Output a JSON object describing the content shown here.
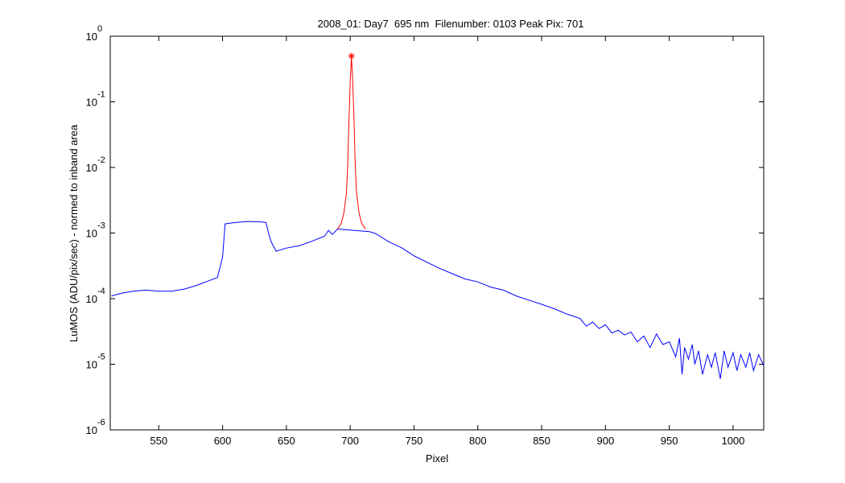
{
  "chart_data": {
    "type": "line",
    "title": "2008_01: Day7  695 nm  Filenumber: 0103 Peak Pix: 701",
    "x_label": "Pixel",
    "y_label": "LuMOS (ADU/pix/sec) - normed to inband area",
    "log_y": true,
    "xlim": [
      512,
      1024
    ],
    "ylim": [
      1e-06,
      1
    ],
    "xticks": [
      550,
      600,
      650,
      700,
      750,
      800,
      850,
      900,
      950,
      1000
    ],
    "yticks": [
      {
        "value": 1e-06,
        "label": "10",
        "power": "-6"
      },
      {
        "value": 1e-05,
        "label": "10",
        "power": "-5"
      },
      {
        "value": 0.0001,
        "label": "10",
        "power": "-4"
      },
      {
        "value": 0.001,
        "label": "10",
        "power": "-3"
      },
      {
        "value": 0.01,
        "label": "10",
        "power": "-2"
      },
      {
        "value": 0.1,
        "label": "10",
        "power": "-1"
      },
      {
        "value": 1,
        "label": "10",
        "power": "0"
      }
    ],
    "series": [
      {
        "color": "#0000ff",
        "x": [
          513,
          520,
          530,
          540,
          550,
          560,
          570,
          580,
          590,
          596,
          598,
          600,
          602,
          610,
          620,
          630,
          634,
          636,
          638,
          642,
          650,
          660,
          670,
          680,
          683,
          686,
          690,
          715,
          720,
          730,
          740,
          750,
          760,
          770,
          780,
          790,
          800,
          810,
          820,
          830,
          840,
          850,
          860,
          870,
          880,
          885,
          890,
          895,
          900,
          905,
          910,
          915,
          920,
          925,
          930,
          935,
          940,
          945,
          950,
          955,
          958,
          960,
          962,
          965,
          968,
          970,
          973,
          976,
          980,
          983,
          986,
          990,
          993,
          996,
          1000,
          1003,
          1006,
          1010,
          1013,
          1016,
          1020,
          1024
        ],
        "values": [
          0.00011,
          0.00012,
          0.00013,
          0.000135,
          0.00013,
          0.00013,
          0.00014,
          0.00016,
          0.00019,
          0.00021,
          0.0003,
          0.00043,
          0.00138,
          0.00145,
          0.0015,
          0.00148,
          0.00145,
          0.001,
          0.00074,
          0.00053,
          0.00059,
          0.00064,
          0.00075,
          0.0009,
          0.0011,
          0.00095,
          0.00115,
          0.00105,
          0.00098,
          0.00074,
          0.0006,
          0.00045,
          0.00036,
          0.00029,
          0.00024,
          0.0002,
          0.00018,
          0.00015,
          0.000135,
          0.00011,
          9.5e-05,
          8.2e-05,
          7e-05,
          5.8e-05,
          5e-05,
          3.8e-05,
          4.4e-05,
          3.5e-05,
          4e-05,
          3e-05,
          3.3e-05,
          2.8e-05,
          3.1e-05,
          2.2e-05,
          2.7e-05,
          1.8e-05,
          2.9e-05,
          2e-05,
          2.2e-05,
          1.3e-05,
          2.5e-05,
          7e-06,
          1.8e-05,
          1.2e-05,
          2e-05,
          1e-05,
          1.6e-05,
          7e-06,
          1.4e-05,
          9e-06,
          1.5e-05,
          6e-06,
          1.6e-05,
          9e-06,
          1.5e-05,
          8e-06,
          1.4e-05,
          9e-06,
          1.5e-05,
          8e-06,
          1.4e-05,
          9.5e-06
        ]
      },
      {
        "color": "#ff0000",
        "x": [
          690,
          693,
          695,
          697,
          698,
          699,
          700,
          701,
          702,
          703,
          704,
          705,
          707,
          709,
          712
        ],
        "values": [
          0.00115,
          0.0014,
          0.002,
          0.004,
          0.01,
          0.05,
          0.2,
          0.5,
          0.2,
          0.05,
          0.01,
          0.004,
          0.002,
          0.0014,
          0.00115
        ]
      }
    ],
    "peak": {
      "x": 701,
      "value": 0.5,
      "color": "#ff0000"
    }
  }
}
